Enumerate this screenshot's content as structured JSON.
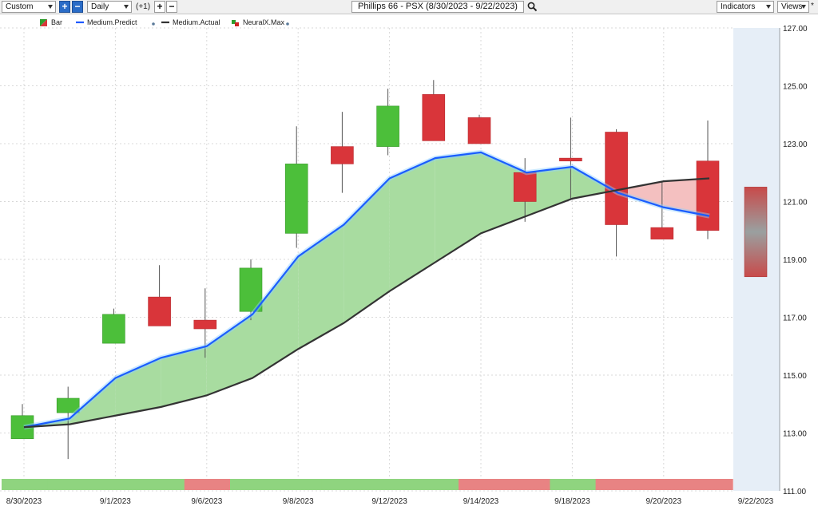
{
  "toolbar": {
    "template_select": "Custom",
    "period_select": "Daily",
    "offset_text": "(+1)",
    "title": "Phillips 66 - PSX (8/30/2023 - 9/22/2023)",
    "indicators_select": "Indicators",
    "views_select": "Views",
    "views_extra": "*"
  },
  "legend": [
    {
      "label": "Bar",
      "color": "#2e9e2e"
    },
    {
      "label": "Medium.Predict",
      "color": "#1e5aff"
    },
    {
      "label": "Medium.Actual",
      "color": "#333333"
    },
    {
      "label": "NeuralX.Max",
      "color": "#cc2222"
    }
  ],
  "chart_data": {
    "type": "candlestick",
    "x_labels": [
      "8/30/2023",
      "9/1/2023",
      "9/6/2023",
      "9/8/2023",
      "9/12/2023",
      "9/14/2023",
      "9/18/2023",
      "9/20/2023",
      "9/22/2023"
    ],
    "y_ticks": [
      "111.00",
      "113.00",
      "115.00",
      "117.00",
      "119.00",
      "121.00",
      "123.00",
      "125.00",
      "127.00"
    ],
    "ylim": [
      111,
      127
    ],
    "candles": [
      {
        "date": "8/30/2023",
        "open": 112.8,
        "close": 113.6,
        "high": 114.0,
        "low": 112.8,
        "up": true
      },
      {
        "date": "8/31/2023",
        "open": 113.7,
        "close": 114.2,
        "high": 114.6,
        "low": 112.1,
        "up": true
      },
      {
        "date": "9/1/2023",
        "open": 116.1,
        "close": 117.1,
        "high": 117.3,
        "low": 116.1,
        "up": true
      },
      {
        "date": "9/5/2023",
        "open": 117.7,
        "close": 116.7,
        "high": 118.8,
        "low": 116.7,
        "up": false
      },
      {
        "date": "9/6/2023",
        "open": 116.9,
        "close": 116.6,
        "high": 118.0,
        "low": 115.6,
        "up": false
      },
      {
        "date": "9/7/2023",
        "open": 117.2,
        "close": 118.7,
        "high": 119.0,
        "low": 116.9,
        "up": true
      },
      {
        "date": "9/8/2023",
        "open": 119.9,
        "close": 122.3,
        "high": 123.6,
        "low": 119.4,
        "up": true
      },
      {
        "date": "9/11/2023",
        "open": 122.9,
        "close": 122.3,
        "high": 124.1,
        "low": 121.3,
        "up": false
      },
      {
        "date": "9/12/2023",
        "open": 122.9,
        "close": 124.3,
        "high": 124.9,
        "low": 122.6,
        "up": true
      },
      {
        "date": "9/13/2023",
        "open": 124.7,
        "close": 123.1,
        "high": 125.2,
        "low": 123.1,
        "up": false
      },
      {
        "date": "9/14/2023",
        "open": 123.9,
        "close": 123.0,
        "high": 124.0,
        "low": 123.0,
        "up": false
      },
      {
        "date": "9/15/2023",
        "open": 122.0,
        "close": 121.0,
        "high": 122.5,
        "low": 120.3,
        "up": false
      },
      {
        "date": "9/18/2023",
        "open": 122.5,
        "close": 122.4,
        "high": 123.9,
        "low": 121.1,
        "up": false
      },
      {
        "date": "9/19/2023",
        "open": 123.4,
        "close": 120.2,
        "high": 123.5,
        "low": 119.1,
        "up": false
      },
      {
        "date": "9/20/2023",
        "open": 120.1,
        "close": 119.7,
        "high": 121.7,
        "low": 119.7,
        "up": false
      },
      {
        "date": "9/21/2023",
        "open": 122.4,
        "close": 120.0,
        "high": 123.8,
        "low": 119.7,
        "up": false
      }
    ],
    "medium_predict": [
      113.2,
      113.5,
      114.9,
      115.6,
      116.0,
      117.1,
      119.1,
      120.2,
      121.8,
      122.5,
      122.7,
      122.0,
      122.2,
      121.3,
      120.8,
      120.5
    ],
    "medium_actual": [
      113.2,
      113.3,
      113.6,
      113.9,
      114.3,
      114.9,
      115.9,
      116.8,
      117.9,
      118.9,
      119.9,
      120.5,
      121.1,
      121.4,
      121.7,
      121.8
    ],
    "neuralx_max": {
      "date": "9/22/2023",
      "top": 121.5,
      "bottom": 118.4
    },
    "signal_bar": [
      "up",
      "up",
      "up",
      "up",
      "down",
      "up",
      "up",
      "up",
      "up",
      "up",
      "down",
      "down",
      "up",
      "down",
      "down",
      "down"
    ],
    "colors": {
      "up": "#4cbf3a",
      "down": "#d9353a",
      "predict": "#1a5dff",
      "actual": "#333333",
      "fill_up": "#a8dca0",
      "fill_down": "#f4c0c0",
      "signal_up": "#8fd47f",
      "signal_down": "#e88383",
      "future_bg": "#e6eef7"
    }
  }
}
